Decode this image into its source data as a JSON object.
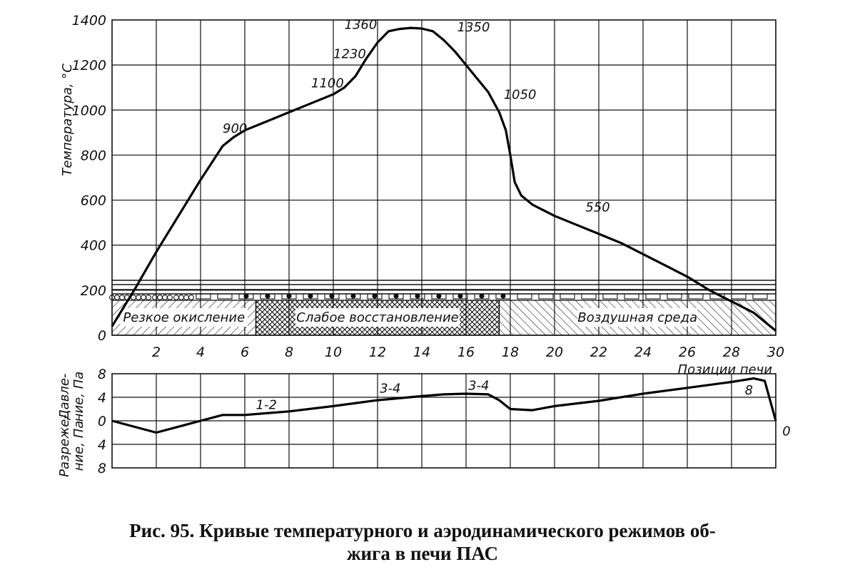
{
  "caption": {
    "line1": "Рис. 95. Кривые температурного и аэродинамического режимов об-",
    "line2": "жига в печи ПАС"
  },
  "chart_data": [
    {
      "type": "line",
      "title": "",
      "xlabel": "Позиции печи",
      "ylabel": "Температура, °С",
      "xlim": [
        0,
        30
      ],
      "ylim": [
        0,
        1400
      ],
      "x_ticks": [
        "2",
        "4",
        "6",
        "8",
        "10",
        "12",
        "14",
        "16",
        "18",
        "20",
        "22",
        "24",
        "26",
        "28",
        "30"
      ],
      "y_ticks": [
        "0",
        "200",
        "400",
        "600",
        "800",
        "1000",
        "1200",
        "1400"
      ],
      "grid": true,
      "series": [
        {
          "x": [
            0,
            1,
            2,
            3,
            4,
            5,
            5.5,
            6,
            7,
            8,
            9,
            10,
            10.5,
            11,
            11.5,
            12,
            12.5,
            13,
            13.5,
            14,
            14.5,
            15,
            15.5,
            16,
            16.5,
            17,
            17.5,
            17.8,
            18,
            18.2,
            18.5,
            19,
            20,
            21,
            22,
            23,
            24,
            25,
            26,
            27,
            28,
            29,
            29.5,
            30
          ],
          "y": [
            40,
            200,
            370,
            530,
            690,
            840,
            880,
            910,
            950,
            990,
            1030,
            1070,
            1100,
            1150,
            1230,
            1300,
            1350,
            1360,
            1365,
            1362,
            1350,
            1310,
            1260,
            1200,
            1140,
            1080,
            990,
            910,
            800,
            680,
            620,
            580,
            530,
            490,
            450,
            410,
            360,
            310,
            260,
            200,
            150,
            100,
            60,
            20
          ]
        }
      ],
      "annotations": [
        {
          "text": "900",
          "x": 5,
          "y": 900
        },
        {
          "text": "1100",
          "x": 9,
          "y": 1100
        },
        {
          "text": "1230",
          "x": 10,
          "y": 1230
        },
        {
          "text": "1360",
          "x": 10.5,
          "y": 1360
        },
        {
          "text": "1350",
          "x": 15.6,
          "y": 1350
        },
        {
          "text": "1050",
          "x": 17.7,
          "y": 1050
        },
        {
          "text": "550",
          "x": 21.4,
          "y": 550
        }
      ],
      "zones": [
        {
          "label": "Резкое окисление",
          "from": 0,
          "to": 6.5
        },
        {
          "label": "Слабое восстановление",
          "from": 6.5,
          "to": 17.5
        },
        {
          "label": "Воздушная среда",
          "from": 17.5,
          "to": 30
        }
      ]
    },
    {
      "type": "line",
      "title": "",
      "xlabel": "",
      "ylabel_top": "Давле-ние, Па",
      "ylabel_bottom": "Разреже-ние, Па",
      "xlim": [
        0,
        30
      ],
      "ylim": [
        -8,
        8
      ],
      "y_ticks": [
        "8",
        "4",
        "0",
        "4",
        "8"
      ],
      "grid": true,
      "series": [
        {
          "x": [
            0,
            2,
            4,
            5,
            6,
            8,
            10,
            12,
            14,
            15,
            16,
            17,
            17.5,
            18,
            19,
            20,
            22,
            24,
            26,
            28,
            29,
            29.5,
            30
          ],
          "y": [
            0,
            -2,
            0,
            1,
            1,
            1.6,
            2.5,
            3.5,
            4.2,
            4.5,
            4.6,
            4.5,
            3.5,
            2,
            1.8,
            2.5,
            3.4,
            4.6,
            5.6,
            6.6,
            7.2,
            6.8,
            0
          ]
        }
      ],
      "annotations": [
        {
          "text": "1-2",
          "x": 6.5,
          "y": 2
        },
        {
          "text": "3-4",
          "x": 12.1,
          "y": 4.8
        },
        {
          "text": "3-4",
          "x": 16.1,
          "y": 5.3
        },
        {
          "text": "8",
          "x": 28.6,
          "y": 4.5
        },
        {
          "text": "0",
          "x": 30.3,
          "y": -2.5
        }
      ]
    }
  ]
}
